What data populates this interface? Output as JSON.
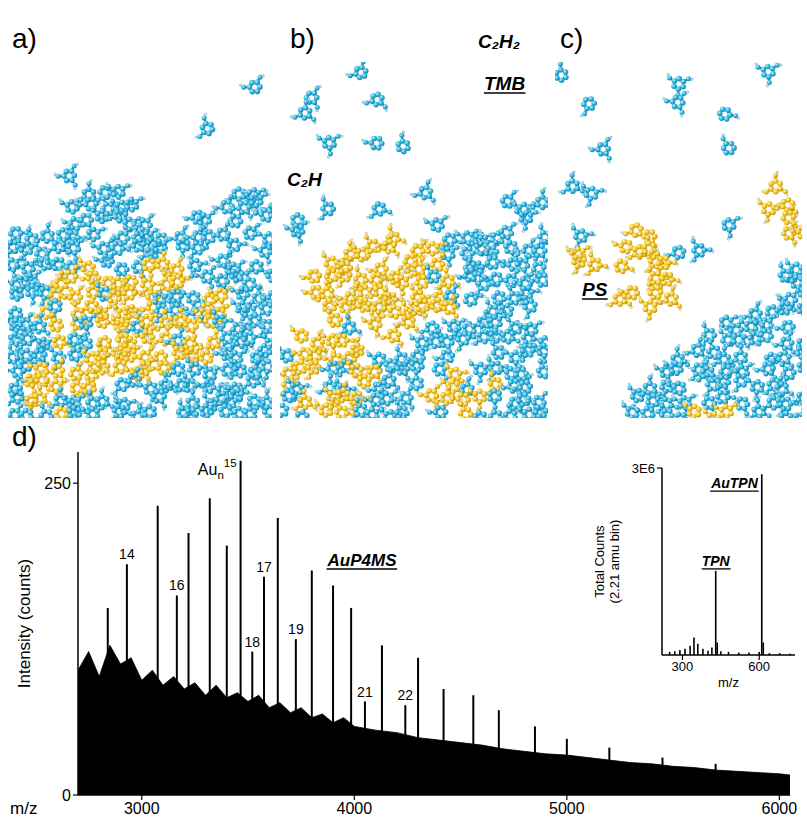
{
  "panels": [
    {
      "label": "a)"
    },
    {
      "label": "b)",
      "annotations": [
        "C₂H₂",
        "TMB",
        "C₂H"
      ]
    },
    {
      "label": "c)",
      "annotations": [
        "PS"
      ]
    }
  ],
  "chart_data": [
    {
      "type": "spectrum",
      "panel": "d)",
      "xlabel": "m/z",
      "ylabel": "Intensity (counts)",
      "xlim": [
        2700,
        6050
      ],
      "ylim": [
        0,
        275
      ],
      "xticks": [
        3000,
        4000,
        5000,
        6000
      ],
      "yticks": [
        0,
        250
      ],
      "annotations": [
        "AuP4MS"
      ],
      "series": [
        {
          "type": "area",
          "color": "#000000",
          "x": [
            2700,
            2750,
            2800,
            2850,
            2900,
            2950,
            3000,
            3050,
            3100,
            3150,
            3200,
            3250,
            3300,
            3350,
            3400,
            3450,
            3500,
            3550,
            3600,
            3650,
            3700,
            3750,
            3800,
            3850,
            3900,
            3950,
            4000,
            4100,
            4200,
            4300,
            4400,
            4500,
            4600,
            4700,
            4800,
            4900,
            5000,
            5100,
            5200,
            5300,
            5400,
            5500,
            5600,
            5700,
            5800,
            5900,
            6000,
            6050
          ],
          "values": [
            100,
            115,
            95,
            120,
            105,
            110,
            92,
            100,
            88,
            95,
            85,
            90,
            80,
            88,
            78,
            82,
            75,
            80,
            70,
            74,
            66,
            70,
            62,
            65,
            58,
            62,
            55,
            52,
            50,
            46,
            44,
            42,
            40,
            37,
            35,
            33,
            32,
            30,
            28,
            26,
            25,
            23,
            22,
            20,
            19,
            18,
            17,
            16
          ]
        },
        {
          "type": "stick",
          "color": "#000000",
          "x": [
            2745,
            2840,
            2930,
            3075,
            3165,
            3220,
            3320,
            3400,
            3465,
            3520,
            3575,
            3640,
            3725,
            3800,
            3900,
            3985,
            4050,
            4130,
            4240,
            4300,
            4420,
            4560,
            4680,
            4850,
            5000,
            5200,
            5450,
            5700
          ],
          "values": [
            95,
            150,
            185,
            232,
            160,
            210,
            238,
            200,
            268,
            115,
            175,
            222,
            125,
            180,
            168,
            150,
            75,
            120,
            72,
            110,
            85,
            80,
            68,
            55,
            45,
            38,
            30,
            25
          ],
          "labels": [
            null,
            null,
            "14",
            null,
            "16",
            null,
            null,
            null,
            {
              "base": "Au",
              "sub": "n",
              "sup": "15"
            },
            "18",
            "17",
            null,
            "19",
            null,
            null,
            null,
            "21",
            null,
            "22",
            null,
            null,
            null,
            null,
            null,
            null,
            null,
            null,
            null
          ]
        }
      ]
    },
    {
      "type": "spectrum",
      "xlabel": "m/z",
      "ylabel": "Total Counts (2.21 amu bin)",
      "xlim": [
        220,
        740
      ],
      "ylim": [
        0,
        3000000
      ],
      "xticks": [
        300,
        600
      ],
      "yticks": [
        {
          "value": 3000000,
          "label": "3E6"
        }
      ],
      "series": [
        {
          "type": "stick",
          "color": "#000000",
          "x": [
            250,
            270,
            290,
            310,
            330,
            345,
            360,
            380,
            400,
            415,
            430,
            436,
            450,
            480,
            520,
            560,
            600,
            610,
            616,
            640,
            680,
            720
          ],
          "values": [
            50000,
            60000,
            80000,
            100000,
            150000,
            280000,
            180000,
            100000,
            70000,
            120000,
            1350000,
            200000,
            60000,
            50000,
            40000,
            40000,
            50000,
            2900000,
            200000,
            30000,
            30000,
            20000
          ],
          "labels": [
            null,
            null,
            null,
            null,
            null,
            null,
            null,
            null,
            null,
            null,
            "TPN",
            null,
            null,
            null,
            null,
            null,
            null,
            "AuTPN",
            null,
            null,
            null,
            null
          ]
        }
      ]
    }
  ]
}
